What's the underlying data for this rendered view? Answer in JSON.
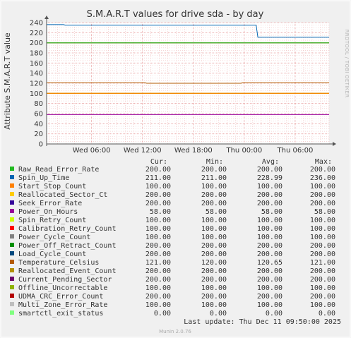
{
  "chart_data": {
    "type": "line",
    "title": "S.M.A.R.T values for drive sda - by day",
    "ylabel": "Attribute S.M.A.R.T value",
    "xlabel": "",
    "watermark": "RRDTOOL / TOBI OETIKER",
    "footer": "Munin 2.0.76",
    "last_update": "Last update:  Thu Dec 11 09:50:00 2025",
    "ylim": [
      0,
      240
    ],
    "y_ticks": [
      0,
      20,
      40,
      60,
      80,
      100,
      120,
      140,
      160,
      180,
      200,
      220,
      240
    ],
    "x_ticks": [
      {
        "t": 6,
        "label": "Wed 06:00"
      },
      {
        "t": 12,
        "label": "Wed 12:00"
      },
      {
        "t": 18,
        "label": "Wed 18:00"
      },
      {
        "t": 24,
        "label": "Thu 00:00"
      },
      {
        "t": 30,
        "label": "Thu 06:00"
      }
    ],
    "x_range_hours": [
      0.7,
      34.0
    ],
    "grid": true,
    "legend_headers": [
      "Cur:",
      "Min:",
      "Avg:",
      "Max:"
    ],
    "series": [
      {
        "name": "Raw_Read_Error_Rate",
        "color": "#22bb22",
        "cur": "200.00",
        "min": "200.00",
        "avg": "200.00",
        "max": "200.00",
        "points": [
          [
            0.7,
            200
          ],
          [
            34.0,
            200
          ]
        ]
      },
      {
        "name": "Spin_Up_Time",
        "color": "#0066b3",
        "cur": "211.00",
        "min": "211.00",
        "avg": "228.99",
        "max": "236.00",
        "points": [
          [
            0.7,
            236
          ],
          [
            2.7,
            236
          ],
          [
            2.9,
            235
          ],
          [
            25.4,
            235
          ],
          [
            25.6,
            211
          ],
          [
            34.0,
            211
          ]
        ]
      },
      {
        "name": "Start_Stop_Count",
        "color": "#ff8000",
        "cur": "100.00",
        "min": "100.00",
        "avg": "100.00",
        "max": "100.00",
        "points": [
          [
            0.7,
            100
          ],
          [
            34.0,
            100
          ]
        ]
      },
      {
        "name": "Reallocated_Sector_Ct",
        "color": "#ffcc00",
        "cur": "200.00",
        "min": "200.00",
        "avg": "200.00",
        "max": "200.00",
        "points": [
          [
            0.7,
            200
          ],
          [
            34.0,
            200
          ]
        ]
      },
      {
        "name": "Seek_Error_Rate",
        "color": "#330099",
        "cur": "200.00",
        "min": "200.00",
        "avg": "200.00",
        "max": "200.00",
        "points": [
          [
            0.7,
            200
          ],
          [
            34.0,
            200
          ]
        ]
      },
      {
        "name": "Power_On_Hours",
        "color": "#990099",
        "cur": "58.00",
        "min": "58.00",
        "avg": "58.00",
        "max": "58.00",
        "points": [
          [
            0.7,
            58
          ],
          [
            34.0,
            58
          ]
        ]
      },
      {
        "name": "Spin_Retry_Count",
        "color": "#ccff00",
        "cur": "100.00",
        "min": "100.00",
        "avg": "100.00",
        "max": "100.00",
        "points": [
          [
            0.7,
            100
          ],
          [
            34.0,
            100
          ]
        ]
      },
      {
        "name": "Calibration_Retry_Count",
        "color": "#ff0000",
        "cur": "100.00",
        "min": "100.00",
        "avg": "100.00",
        "max": "100.00",
        "points": [
          [
            0.7,
            100
          ],
          [
            34.0,
            100
          ]
        ]
      },
      {
        "name": "Power_Cycle_Count",
        "color": "#808080",
        "cur": "100.00",
        "min": "100.00",
        "avg": "100.00",
        "max": "100.00",
        "points": [
          [
            0.7,
            100
          ],
          [
            34.0,
            100
          ]
        ]
      },
      {
        "name": "Power_Off_Retract_Count",
        "color": "#008f00",
        "cur": "200.00",
        "min": "200.00",
        "avg": "200.00",
        "max": "200.00",
        "points": [
          [
            0.7,
            200
          ],
          [
            34.0,
            200
          ]
        ]
      },
      {
        "name": "Load_Cycle_Count",
        "color": "#00487d",
        "cur": "200.00",
        "min": "200.00",
        "avg": "200.00",
        "max": "200.00",
        "points": [
          [
            0.7,
            200
          ],
          [
            34.0,
            200
          ]
        ]
      },
      {
        "name": "Temperature_Celsius",
        "color": "#b35a00",
        "cur": "121.00",
        "min": "120.00",
        "avg": "120.65",
        "max": "121.00",
        "points": [
          [
            0.7,
            121
          ],
          [
            12.3,
            121
          ],
          [
            12.5,
            120
          ],
          [
            23.6,
            120
          ],
          [
            23.8,
            121
          ],
          [
            34.0,
            121
          ]
        ]
      },
      {
        "name": "Reallocated_Event_Count",
        "color": "#b38f00",
        "cur": "200.00",
        "min": "200.00",
        "avg": "200.00",
        "max": "200.00",
        "points": [
          [
            0.7,
            200
          ],
          [
            34.0,
            200
          ]
        ]
      },
      {
        "name": "Current_Pending_Sector",
        "color": "#6b006b",
        "cur": "200.00",
        "min": "200.00",
        "avg": "200.00",
        "max": "200.00",
        "points": [
          [
            0.7,
            200
          ],
          [
            34.0,
            200
          ]
        ]
      },
      {
        "name": "Offline_Uncorrectable",
        "color": "#8fb300",
        "cur": "100.00",
        "min": "100.00",
        "avg": "100.00",
        "max": "100.00",
        "points": [
          [
            0.7,
            100
          ],
          [
            34.0,
            100
          ]
        ]
      },
      {
        "name": "UDMA_CRC_Error_Count",
        "color": "#b30000",
        "cur": "200.00",
        "min": "200.00",
        "avg": "200.00",
        "max": "200.00",
        "points": [
          [
            0.7,
            200
          ],
          [
            34.0,
            200
          ]
        ]
      },
      {
        "name": "Multi_Zone_Error_Rate",
        "color": "#bebebe",
        "cur": "100.00",
        "min": "100.00",
        "avg": "100.00",
        "max": "100.00",
        "points": [
          [
            0.7,
            100
          ],
          [
            34.0,
            100
          ]
        ]
      },
      {
        "name": "smartctl_exit_status",
        "color": "#80ff80",
        "cur": "0.00",
        "min": "0.00",
        "avg": "0.00",
        "max": "0.00",
        "dashed": true,
        "points": [
          [
            0.7,
            0
          ],
          [
            34.0,
            0
          ]
        ]
      }
    ]
  }
}
